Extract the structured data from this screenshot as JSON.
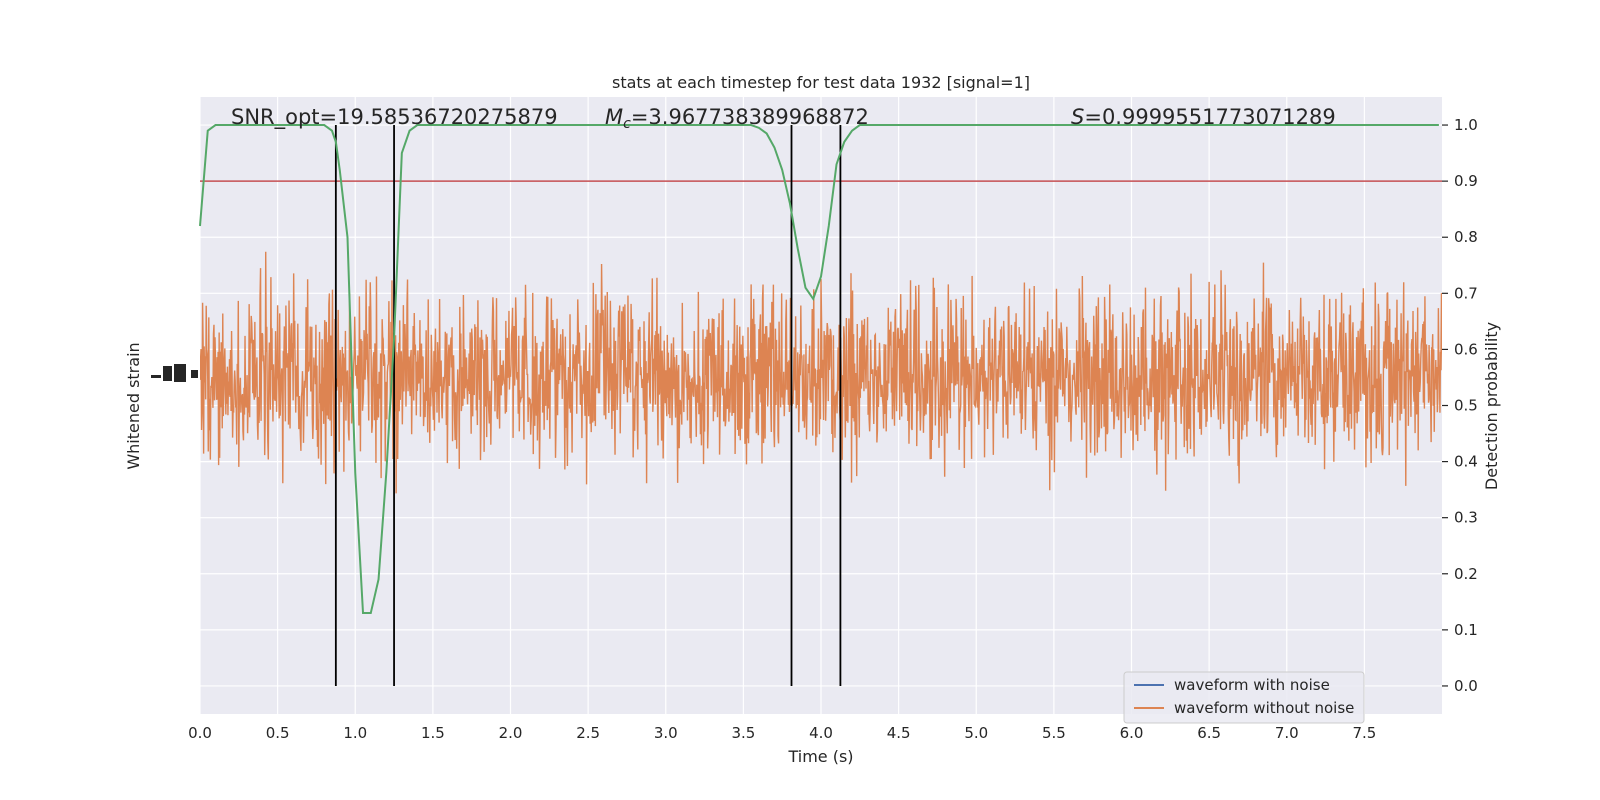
{
  "chart_data": {
    "type": "line",
    "title": "stats at each timestep for test data 1932 [signal=1]",
    "xlabel": "Time (s)",
    "ylabel_left": "Whitened strain",
    "ylabel_right": "Detection probability",
    "xlim": [
      0,
      8
    ],
    "ylim_right": [
      -0.05,
      1.05
    ],
    "x_ticks": [
      "0.0",
      "0.5",
      "1.0",
      "1.5",
      "2.0",
      "2.5",
      "3.0",
      "3.5",
      "4.0",
      "4.5",
      "5.0",
      "5.5",
      "6.0",
      "6.5",
      "7.0",
      "7.5"
    ],
    "y_ticks_right": [
      "0.0",
      "0.1",
      "0.2",
      "0.3",
      "0.4",
      "0.5",
      "0.6",
      "0.7",
      "0.8",
      "0.9",
      "1.0"
    ],
    "annotations": {
      "snr": "SNR_opt=19.58536720275879",
      "mc_symbol": "M",
      "mc_sub": "c",
      "mc_value": "=3.967738389968872",
      "s_symbol": "S",
      "s_value": "=0.9999551773071289"
    },
    "threshold": 0.9,
    "vertical_lines": [
      0.875,
      1.25,
      3.81,
      4.125
    ],
    "detection_probability": {
      "x": [
        0.0,
        0.05,
        0.1,
        0.15,
        0.2,
        0.3,
        0.4,
        0.5,
        0.6,
        0.7,
        0.75,
        0.8,
        0.85,
        0.875,
        0.9,
        0.95,
        1.0,
        1.05,
        1.1,
        1.15,
        1.2,
        1.25,
        1.3,
        1.35,
        1.4,
        1.5,
        2.0,
        2.5,
        3.0,
        3.4,
        3.5,
        3.55,
        3.6,
        3.65,
        3.7,
        3.75,
        3.8,
        3.85,
        3.9,
        3.95,
        4.0,
        4.05,
        4.1,
        4.15,
        4.2,
        4.25,
        4.3,
        4.35,
        4.4,
        4.5,
        5.0,
        5.5,
        6.0,
        6.5,
        7.0,
        7.5,
        7.98
      ],
      "y": [
        0.82,
        0.99,
        1.0,
        1.0,
        1.0,
        1.0,
        1.0,
        1.0,
        1.0,
        1.0,
        1.0,
        1.0,
        0.99,
        0.97,
        0.92,
        0.8,
        0.38,
        0.13,
        0.13,
        0.19,
        0.38,
        0.62,
        0.95,
        0.99,
        1.0,
        1.0,
        1.0,
        1.0,
        1.0,
        1.0,
        1.0,
        1.0,
        0.995,
        0.985,
        0.96,
        0.92,
        0.86,
        0.78,
        0.71,
        0.69,
        0.73,
        0.82,
        0.93,
        0.97,
        0.99,
        1.0,
        1.0,
        1.0,
        1.0,
        1.0,
        1.0,
        1.0,
        1.0,
        1.0,
        1.0,
        1.0,
        1.0
      ]
    },
    "series": [
      {
        "name": "waveform with noise",
        "color": "#4c72b0"
      },
      {
        "name": "waveform without noise",
        "color": "#dd8452"
      }
    ],
    "colors": {
      "background": "#eaeaf2",
      "probability": "#55a868",
      "threshold": "#c44e52",
      "vlines": "#000000",
      "strain": "#dd8452"
    },
    "legend_position": "lower-right",
    "grid": true
  }
}
